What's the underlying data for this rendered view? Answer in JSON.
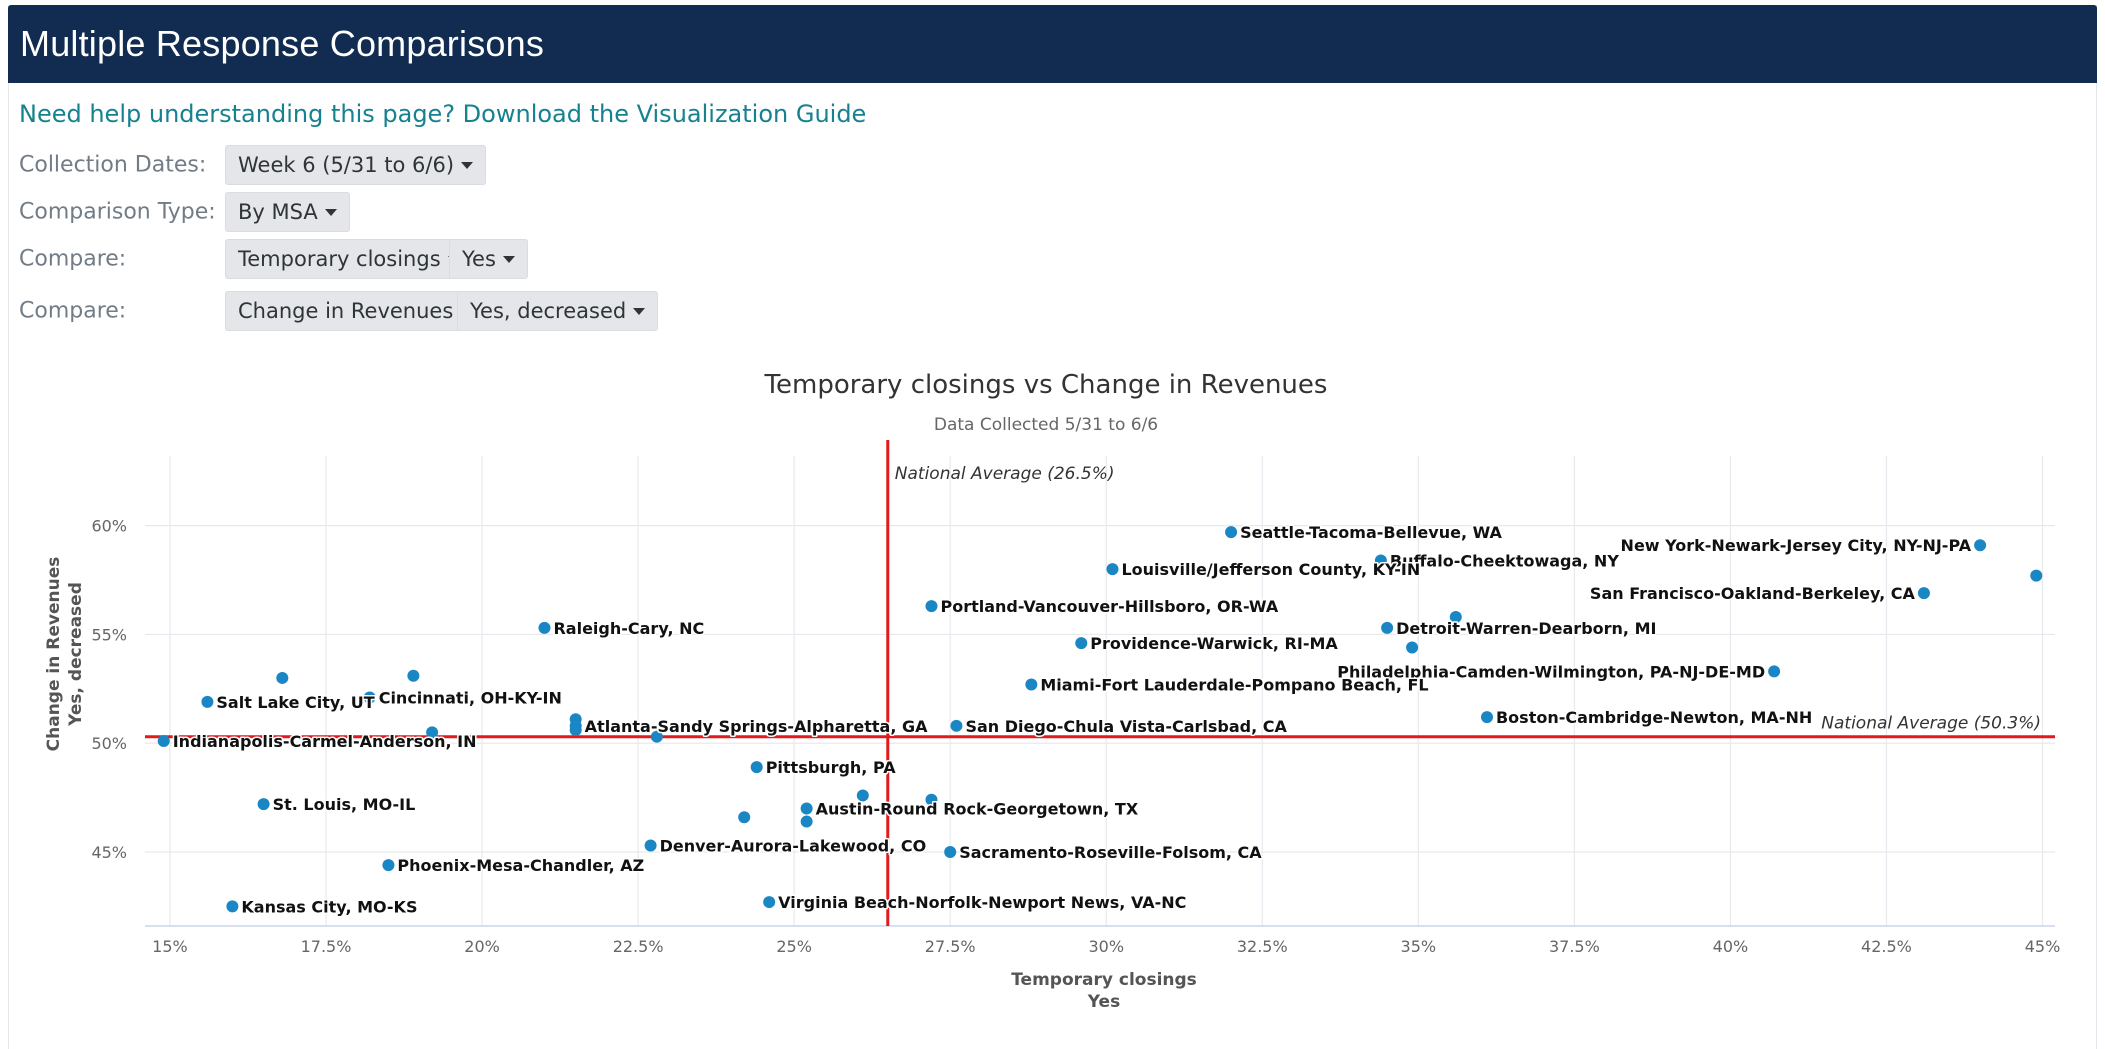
{
  "header": {
    "title": "Multiple Response Comparisons"
  },
  "help_link": "Need help understanding this page? Download the Visualization Guide",
  "controls": {
    "collection_dates": {
      "label": "Collection Dates:",
      "value": "Week 6 (5/31 to 6/6)"
    },
    "comparison_type": {
      "label": "Comparison Type:",
      "value": "By MSA"
    },
    "compare_x": {
      "label": "Compare:",
      "question": "Temporary closings",
      "response": "Yes"
    },
    "compare_y": {
      "label": "Compare:",
      "question": "Change in Revenues",
      "response": "Yes, decreased"
    }
  },
  "colors": {
    "point": "#1a87c4",
    "average_line": "#e31a1c",
    "grid": "#e6e9ee",
    "header_bg": "#122c51",
    "link": "#17828f"
  },
  "chart_data": {
    "type": "scatter",
    "title": "Temporary closings vs Change in Revenues",
    "subtitle": "Data Collected 5/31 to 6/6",
    "xlabel": "Temporary closings",
    "xlabel2": "Yes",
    "ylabel": "Change in Revenues",
    "ylabel2": "Yes, decreased",
    "xlim": [
      14.6,
      45.2
    ],
    "ylim": [
      41.6,
      63.2
    ],
    "x_ticks": [
      15,
      17.5,
      20,
      22.5,
      25,
      27.5,
      30,
      32.5,
      35,
      37.5,
      40,
      42.5,
      45
    ],
    "x_tick_labels": [
      "15%",
      "17.5%",
      "20%",
      "22.5%",
      "25%",
      "27.5%",
      "30%",
      "32.5%",
      "35%",
      "37.5%",
      "40%",
      "42.5%",
      "45%"
    ],
    "y_ticks": [
      45,
      50,
      55,
      60
    ],
    "y_tick_labels": [
      "45%",
      "50%",
      "55%",
      "60%"
    ],
    "national_average_x": {
      "value": 26.5,
      "label": "National Average (26.5%)"
    },
    "national_average_y": {
      "value": 50.3,
      "label": "National Average (50.3%)"
    },
    "points": [
      {
        "x": 32.0,
        "y": 59.7,
        "label": "Seattle-Tacoma-Bellevue, WA"
      },
      {
        "x": 44.0,
        "y": 59.1,
        "label": "New York-Newark-Jersey City, NY-NJ-PA"
      },
      {
        "x": 44.9,
        "y": 57.7,
        "label": ""
      },
      {
        "x": 34.4,
        "y": 58.4,
        "label": "Buffalo-Cheektowaga, NY"
      },
      {
        "x": 30.1,
        "y": 58.0,
        "label": "Louisville/Jefferson County, KY-IN"
      },
      {
        "x": 43.1,
        "y": 56.9,
        "label": "San Francisco-Oakland-Berkeley, CA"
      },
      {
        "x": 27.2,
        "y": 56.3,
        "label": "Portland-Vancouver-Hillsboro, OR-WA"
      },
      {
        "x": 35.6,
        "y": 55.8,
        "label": ""
      },
      {
        "x": 34.5,
        "y": 55.3,
        "label": "Detroit-Warren-Dearborn, MI"
      },
      {
        "x": 21.0,
        "y": 55.3,
        "label": "Raleigh-Cary, NC"
      },
      {
        "x": 29.6,
        "y": 54.6,
        "label": "Providence-Warwick, RI-MA"
      },
      {
        "x": 34.9,
        "y": 54.4,
        "label": ""
      },
      {
        "x": 40.7,
        "y": 53.3,
        "label": "Philadelphia-Camden-Wilmington, PA-NJ-DE-MD"
      },
      {
        "x": 16.8,
        "y": 53.0,
        "label": ""
      },
      {
        "x": 18.9,
        "y": 53.1,
        "label": ""
      },
      {
        "x": 28.8,
        "y": 52.7,
        "label": "Miami-Fort Lauderdale-Pompano Beach, FL"
      },
      {
        "x": 18.2,
        "y": 52.1,
        "label": "Cincinnati, OH-KY-IN"
      },
      {
        "x": 15.6,
        "y": 51.9,
        "label": "Salt Lake City, UT"
      },
      {
        "x": 36.1,
        "y": 51.2,
        "label": "Boston-Cambridge-Newton, MA-NH"
      },
      {
        "x": 21.5,
        "y": 51.1,
        "label": ""
      },
      {
        "x": 21.5,
        "y": 50.8,
        "label": "Atlanta-Sandy Springs-Alpharetta, GA"
      },
      {
        "x": 27.6,
        "y": 50.8,
        "label": "San Diego-Chula Vista-Carlsbad, CA"
      },
      {
        "x": 21.5,
        "y": 50.6,
        "label": ""
      },
      {
        "x": 19.2,
        "y": 50.5,
        "label": ""
      },
      {
        "x": 22.8,
        "y": 50.3,
        "label": ""
      },
      {
        "x": 14.9,
        "y": 50.1,
        "label": "Indianapolis-Carmel-Anderson, IN"
      },
      {
        "x": 24.4,
        "y": 48.9,
        "label": "Pittsburgh, PA"
      },
      {
        "x": 26.1,
        "y": 47.6,
        "label": ""
      },
      {
        "x": 27.2,
        "y": 47.4,
        "label": ""
      },
      {
        "x": 16.5,
        "y": 47.2,
        "label": "St. Louis, MO-IL"
      },
      {
        "x": 25.2,
        "y": 47.0,
        "label": "Austin-Round Rock-Georgetown, TX"
      },
      {
        "x": 24.2,
        "y": 46.6,
        "label": ""
      },
      {
        "x": 25.2,
        "y": 46.4,
        "label": ""
      },
      {
        "x": 22.7,
        "y": 45.3,
        "label": "Denver-Aurora-Lakewood, CO"
      },
      {
        "x": 27.5,
        "y": 45.0,
        "label": "Sacramento-Roseville-Folsom, CA"
      },
      {
        "x": 18.5,
        "y": 44.4,
        "label": "Phoenix-Mesa-Chandler, AZ"
      },
      {
        "x": 24.6,
        "y": 42.7,
        "label": "Virginia Beach-Norfolk-Newport News, VA-NC"
      },
      {
        "x": 16.0,
        "y": 42.5,
        "label": "Kansas City, MO-KS"
      }
    ]
  }
}
